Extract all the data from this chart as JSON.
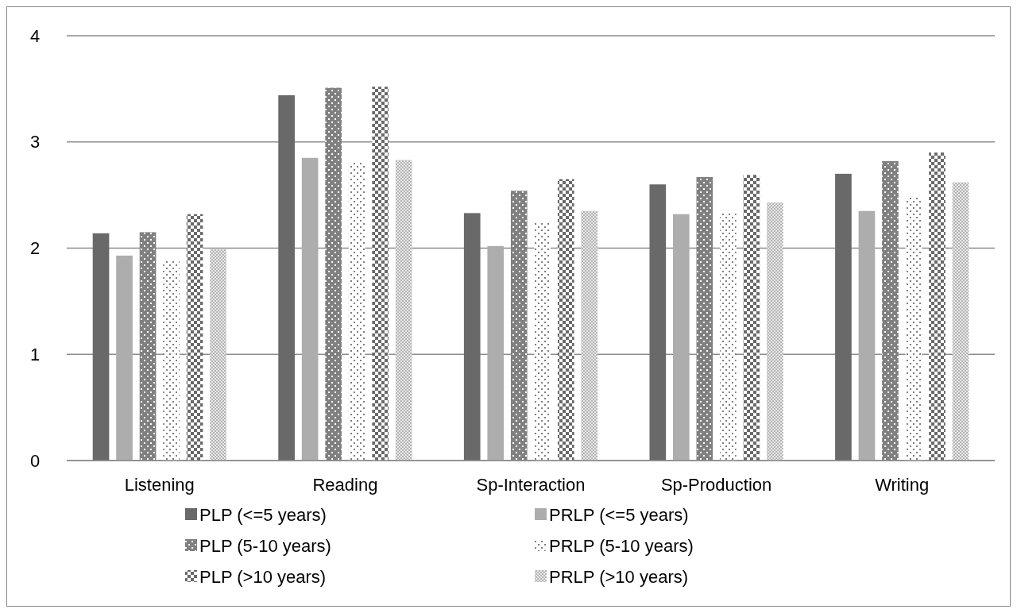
{
  "chart_data": {
    "type": "bar",
    "categories": [
      "Listening",
      "Reading",
      "Sp-Interaction",
      "Sp-Production",
      "Writing"
    ],
    "series": [
      {
        "name": "PLP (<=5 years)",
        "color": "#696969",
        "values": [
          2.14,
          3.44,
          2.33,
          2.6,
          2.7
        ]
      },
      {
        "name": "PRLP (<=5 years)",
        "color": "#adadad",
        "values": [
          1.93,
          2.85,
          2.02,
          2.32,
          2.35
        ]
      },
      {
        "name": "PLP (5-10 years)",
        "color": "#808080",
        "values": [
          2.15,
          3.51,
          2.54,
          2.67,
          2.82
        ]
      },
      {
        "name": "PRLP (5-10 years)",
        "color": "#808080",
        "values": [
          1.88,
          2.81,
          2.25,
          2.34,
          2.49
        ]
      },
      {
        "name": "PLP (>10 years)",
        "color": "#696969",
        "values": [
          2.32,
          3.52,
          2.65,
          2.69,
          2.9
        ]
      },
      {
        "name": "PRLP (>10 years)",
        "color": "#b4b4b4",
        "values": [
          1.99,
          2.83,
          2.35,
          2.43,
          2.62
        ]
      }
    ],
    "ylim": [
      0,
      4
    ],
    "yticks": [
      0,
      1,
      2,
      3,
      4
    ],
    "grid": "y",
    "legend": "bottom"
  }
}
